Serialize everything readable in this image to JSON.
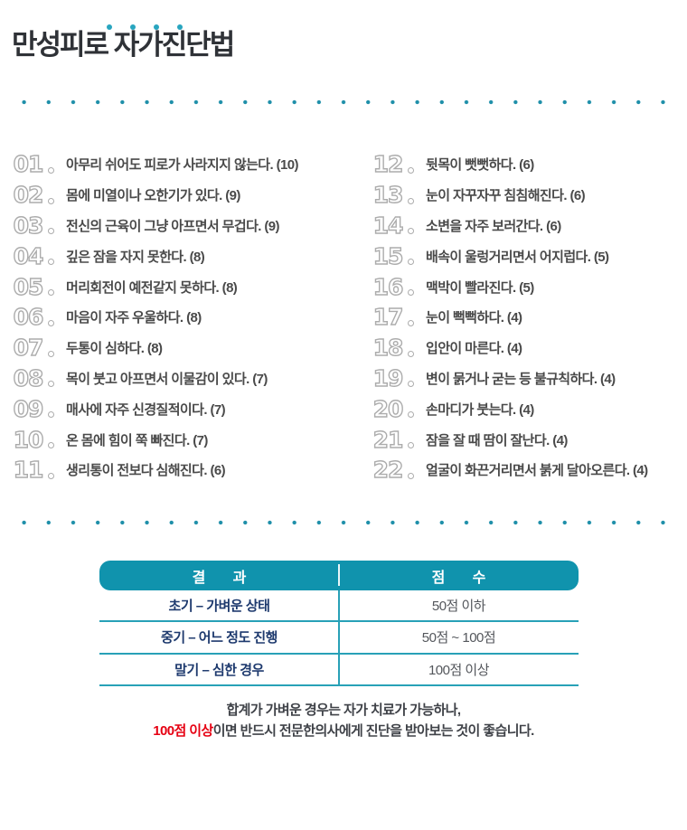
{
  "colors": {
    "accent_teal": "#1093ad",
    "dot_teal": "#1e8fa9",
    "result_navy": "#1e3a6e",
    "warning_red": "#e60012",
    "body_gray": "#4a4a4a"
  },
  "title": "만성피로 자가진단법",
  "checklist": {
    "left": [
      {
        "num": "01",
        "text": "아무리 쉬어도 피로가 사라지지 않는다. (10)"
      },
      {
        "num": "02",
        "text": "몸에 미열이나 오한기가 있다. (9)"
      },
      {
        "num": "03",
        "text": "전신의 근육이 그냥 아프면서 무겁다. (9)"
      },
      {
        "num": "04",
        "text": "깊은 잠을 자지 못한다. (8)"
      },
      {
        "num": "05",
        "text": "머리회전이 예전같지 못하다. (8)"
      },
      {
        "num": "06",
        "text": "마음이 자주 우울하다. (8)"
      },
      {
        "num": "07",
        "text": "두통이 심하다. (8)"
      },
      {
        "num": "08",
        "text": "목이 붓고 아프면서 이물감이 있다. (7)"
      },
      {
        "num": "09",
        "text": "매사에 자주 신경질적이다. (7)"
      },
      {
        "num": "10",
        "text": "온 몸에 힘이 쭉 빠진다. (7)"
      },
      {
        "num": "11",
        "text": "생리통이 전보다 심해진다. (6)"
      }
    ],
    "right": [
      {
        "num": "12",
        "text": "뒷목이 뻣뻣하다. (6)"
      },
      {
        "num": "13",
        "text": "눈이 자꾸자꾸 침침해진다. (6)"
      },
      {
        "num": "14",
        "text": "소변을 자주 보러간다. (6)"
      },
      {
        "num": "15",
        "text": "배속이 울렁거리면서 어지럽다. (5)"
      },
      {
        "num": "16",
        "text": "맥박이 빨라진다. (5)"
      },
      {
        "num": "17",
        "text": "눈이 뻑뻑하다. (4)"
      },
      {
        "num": "18",
        "text": "입안이 마른다. (4)"
      },
      {
        "num": "19",
        "text": "변이 묽거나 굳는 등 불규칙하다. (4)"
      },
      {
        "num": "20",
        "text": "손마디가 붓는다. (4)"
      },
      {
        "num": "21",
        "text": "잠을 잘 때 땀이 잘난다. (4)"
      },
      {
        "num": "22",
        "text": "얼굴이 화끈거리면서 붉게 달아오른다. (4)"
      }
    ]
  },
  "table": {
    "headers": [
      "결과",
      "점수"
    ],
    "rows": [
      {
        "result": "초기 – 가벼운 상태",
        "score": "50점 이하"
      },
      {
        "result": "중기 – 어느 정도 진행",
        "score": "50점 ~ 100점"
      },
      {
        "result": "말기 – 심한 경우",
        "score": "100점 이상"
      }
    ]
  },
  "footer": {
    "line1": "합계가 가벼운 경우는 자가 치료가 가능하나,",
    "line2_highlight": "100점 이상",
    "line2_rest": "이면 반드시 전문한의사에게 진단을 받아보는 것이 좋습니다."
  }
}
